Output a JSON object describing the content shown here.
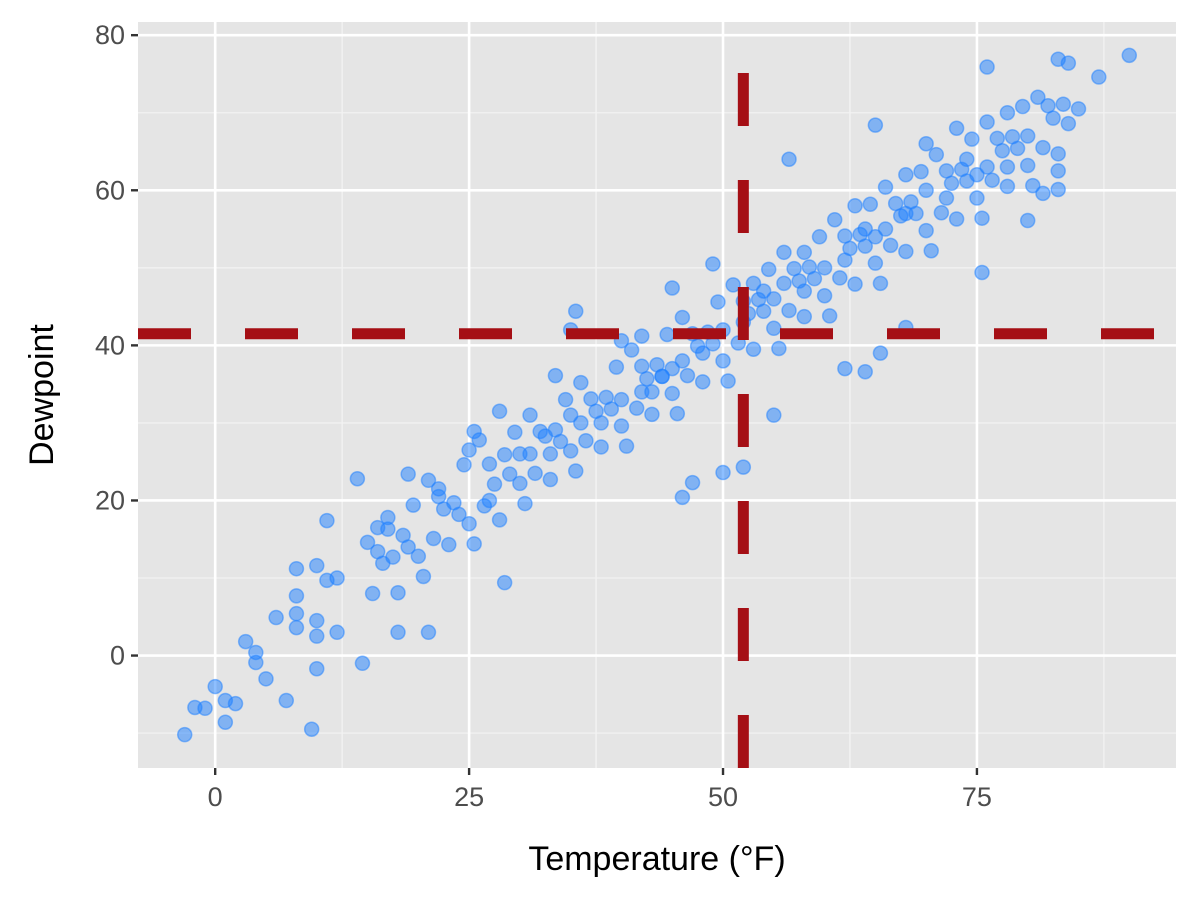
{
  "chart_data": {
    "type": "scatter",
    "title": "",
    "xlabel": "Temperature (°F)",
    "ylabel": "Dewpoint",
    "xlim": [
      -7.6,
      94.6
    ],
    "ylim": [
      -14.5,
      81.7
    ],
    "xticks": [
      0,
      25,
      50,
      75
    ],
    "xtick_labels": [
      "0",
      "25",
      "50",
      "75"
    ],
    "yticks": [
      0,
      20,
      40,
      60,
      80
    ],
    "ytick_labels": [
      "0",
      "20",
      "40",
      "60",
      "80"
    ],
    "grid": true,
    "point_color": "#1E7FFF",
    "reference_line_color": "#A50F15",
    "reference_lines": {
      "vertical_x": 52,
      "horizontal_y": 41.5,
      "style": "dashed"
    },
    "points": [
      [
        -3,
        -10.2
      ],
      [
        -2,
        -6.7
      ],
      [
        -1,
        -6.8
      ],
      [
        0,
        -4
      ],
      [
        1,
        -5.8
      ],
      [
        1,
        -8.6
      ],
      [
        2,
        -6.2
      ],
      [
        3,
        1.8
      ],
      [
        4,
        0.4
      ],
      [
        4,
        -0.9
      ],
      [
        5,
        -3
      ],
      [
        6,
        4.9
      ],
      [
        7,
        -5.8
      ],
      [
        8,
        11.2
      ],
      [
        8,
        7.7
      ],
      [
        8,
        5.4
      ],
      [
        8,
        3.6
      ],
      [
        9.5,
        -9.5
      ],
      [
        10,
        11.6
      ],
      [
        10,
        4.5
      ],
      [
        10,
        2.5
      ],
      [
        10,
        -1.7
      ],
      [
        11,
        17.4
      ],
      [
        11,
        9.7
      ],
      [
        12,
        10
      ],
      [
        12,
        3
      ],
      [
        14,
        22.8
      ],
      [
        14.5,
        -1
      ],
      [
        16,
        16.5
      ],
      [
        17,
        17.8
      ],
      [
        18,
        3
      ],
      [
        19,
        23.4
      ],
      [
        21,
        3
      ],
      [
        22,
        21.5
      ],
      [
        25.5,
        28.9
      ],
      [
        25,
        26.5
      ],
      [
        28.5,
        9.4
      ],
      [
        28,
        31.5
      ],
      [
        33.5,
        36.1
      ],
      [
        35.5,
        44.4
      ],
      [
        35,
        42
      ],
      [
        40,
        40.6
      ],
      [
        42,
        41.2
      ],
      [
        45,
        47.4
      ],
      [
        49,
        50.5
      ],
      [
        56.5,
        64
      ],
      [
        65,
        68.4
      ],
      [
        65.5,
        39
      ],
      [
        64,
        36.6
      ],
      [
        62,
        37
      ],
      [
        68,
        42.3
      ],
      [
        75.5,
        49.4
      ],
      [
        76,
        75.9
      ],
      [
        90,
        77.4
      ],
      [
        83,
        76.9
      ],
      [
        84,
        76.4
      ],
      [
        87,
        74.6
      ],
      [
        83,
        60.1
      ],
      [
        81.5,
        59.6
      ],
      [
        80,
        56.1
      ],
      [
        83,
        62.5
      ],
      [
        85,
        70.5
      ],
      [
        55,
        31
      ],
      [
        52,
        24.3
      ],
      [
        50,
        23.6
      ],
      [
        47,
        22.3
      ],
      [
        46,
        20.4
      ],
      [
        15,
        14.6
      ],
      [
        15.5,
        8
      ],
      [
        16,
        13.4
      ],
      [
        16.5,
        11.9
      ],
      [
        17,
        16.3
      ],
      [
        17.5,
        12.7
      ],
      [
        18,
        8.1
      ],
      [
        18.5,
        15.5
      ],
      [
        19,
        14
      ],
      [
        19.5,
        19.4
      ],
      [
        20,
        12.8
      ],
      [
        20.5,
        10.2
      ],
      [
        21,
        22.6
      ],
      [
        21.5,
        15.1
      ],
      [
        22,
        20.5
      ],
      [
        22.5,
        18.9
      ],
      [
        23,
        14.3
      ],
      [
        23.5,
        19.7
      ],
      [
        24,
        18.2
      ],
      [
        24.5,
        24.6
      ],
      [
        25,
        17
      ],
      [
        25.5,
        14.4
      ],
      [
        26,
        27.8
      ],
      [
        26.5,
        19.3
      ],
      [
        27,
        24.7
      ],
      [
        27.5,
        22.1
      ],
      [
        28,
        17.5
      ],
      [
        28.5,
        25.9
      ],
      [
        29,
        23.4
      ],
      [
        29.5,
        28.8
      ],
      [
        30,
        22.2
      ],
      [
        30.5,
        19.6
      ],
      [
        31,
        31
      ],
      [
        31.5,
        23.5
      ],
      [
        32,
        28.9
      ],
      [
        32.5,
        28.3
      ],
      [
        33,
        22.7
      ],
      [
        33.5,
        29.1
      ],
      [
        34,
        27.6
      ],
      [
        34.5,
        33
      ],
      [
        35,
        26.4
      ],
      [
        35.5,
        23.8
      ],
      [
        36,
        35.2
      ],
      [
        36.5,
        27.7
      ],
      [
        37,
        33.1
      ],
      [
        37.5,
        31.5
      ],
      [
        38,
        26.9
      ],
      [
        38.5,
        33.3
      ],
      [
        39,
        31.8
      ],
      [
        39.5,
        37.2
      ],
      [
        40,
        29.6
      ],
      [
        40.5,
        27
      ],
      [
        41,
        39.4
      ],
      [
        41.5,
        31.9
      ],
      [
        42,
        37.3
      ],
      [
        42.5,
        35.7
      ],
      [
        43,
        31.1
      ],
      [
        43.5,
        37.5
      ],
      [
        44,
        36
      ],
      [
        44.5,
        41.4
      ],
      [
        45,
        33.8
      ],
      [
        45.5,
        31.2
      ],
      [
        46,
        43.6
      ],
      [
        46.5,
        36.1
      ],
      [
        47,
        41.5
      ],
      [
        47.5,
        39.9
      ],
      [
        48,
        35.3
      ],
      [
        48.5,
        41.7
      ],
      [
        49,
        40.2
      ],
      [
        49.5,
        45.6
      ],
      [
        50,
        38
      ],
      [
        50.5,
        35.4
      ],
      [
        51,
        47.8
      ],
      [
        51.5,
        40.3
      ],
      [
        52,
        45.7
      ],
      [
        52.5,
        44.1
      ],
      [
        53,
        39.5
      ],
      [
        53.5,
        45.9
      ],
      [
        54,
        44.4
      ],
      [
        54.5,
        49.8
      ],
      [
        55,
        42.2
      ],
      [
        55.5,
        39.6
      ],
      [
        56,
        52
      ],
      [
        56.5,
        44.5
      ],
      [
        57,
        49.9
      ],
      [
        57.5,
        48.3
      ],
      [
        58,
        43.7
      ],
      [
        58.5,
        50.1
      ],
      [
        59,
        48.6
      ],
      [
        59.5,
        54
      ],
      [
        60,
        46.4
      ],
      [
        60.5,
        43.8
      ],
      [
        61,
        56.2
      ],
      [
        61.5,
        48.7
      ],
      [
        62,
        54.1
      ],
      [
        62.5,
        52.5
      ],
      [
        63,
        47.9
      ],
      [
        63.5,
        54.3
      ],
      [
        64,
        52.8
      ],
      [
        64.5,
        58.2
      ],
      [
        65,
        50.6
      ],
      [
        65.5,
        48
      ],
      [
        66,
        60.4
      ],
      [
        66.5,
        52.9
      ],
      [
        67,
        58.3
      ],
      [
        67.5,
        56.7
      ],
      [
        68,
        52.1
      ],
      [
        68.5,
        58.5
      ],
      [
        69,
        57
      ],
      [
        69.5,
        62.4
      ],
      [
        70,
        54.8
      ],
      [
        70.5,
        52.2
      ],
      [
        71,
        64.6
      ],
      [
        71.5,
        57.1
      ],
      [
        72,
        62.5
      ],
      [
        72.5,
        60.9
      ],
      [
        73,
        56.3
      ],
      [
        73.5,
        62.7
      ],
      [
        74,
        61.2
      ],
      [
        74.5,
        66.6
      ],
      [
        75,
        59
      ],
      [
        75.5,
        56.4
      ],
      [
        76,
        68.8
      ],
      [
        76.5,
        61.3
      ],
      [
        77,
        66.7
      ],
      [
        77.5,
        65.1
      ],
      [
        78,
        60.5
      ],
      [
        78.5,
        66.9
      ],
      [
        79,
        65.4
      ],
      [
        79.5,
        70.8
      ],
      [
        80,
        63.2
      ],
      [
        80.5,
        60.6
      ],
      [
        81,
        72
      ],
      [
        81.5,
        65.5
      ],
      [
        82,
        70.9
      ],
      [
        82.5,
        69.3
      ],
      [
        83,
        64.7
      ],
      [
        83.5,
        71.1
      ],
      [
        84,
        68.6
      ],
      [
        27,
        20
      ],
      [
        30,
        26
      ],
      [
        33,
        26
      ],
      [
        36,
        30
      ],
      [
        38,
        30
      ],
      [
        40,
        33
      ],
      [
        42,
        34
      ],
      [
        44,
        36
      ],
      [
        46,
        38
      ],
      [
        48,
        39
      ],
      [
        50,
        42
      ],
      [
        52,
        43
      ],
      [
        54,
        47
      ],
      [
        56,
        48
      ],
      [
        58,
        47
      ],
      [
        60,
        50
      ],
      [
        62,
        51
      ],
      [
        64,
        55
      ],
      [
        66,
        55
      ],
      [
        68,
        57
      ],
      [
        70,
        60
      ],
      [
        72,
        59
      ],
      [
        74,
        64
      ],
      [
        76,
        63
      ],
      [
        78,
        63
      ],
      [
        80,
        67
      ],
      [
        35,
        31
      ],
      [
        45,
        37
      ],
      [
        55,
        46
      ],
      [
        65,
        54
      ],
      [
        75,
        62
      ],
      [
        70,
        66
      ],
      [
        73,
        68
      ],
      [
        78,
        70
      ],
      [
        68,
        62
      ],
      [
        63,
        58
      ],
      [
        58,
        52
      ],
      [
        53,
        48
      ],
      [
        43,
        34
      ],
      [
        31,
        26
      ]
    ]
  }
}
